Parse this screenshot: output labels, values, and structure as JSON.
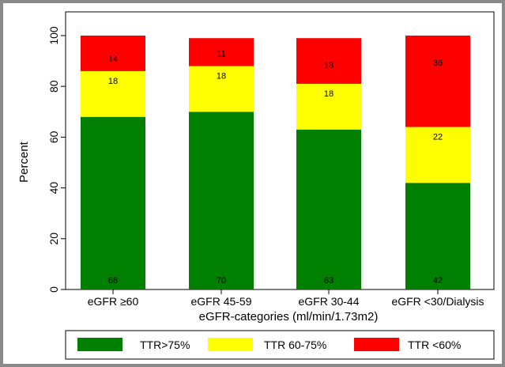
{
  "chart_data": {
    "type": "bar",
    "stacked": true,
    "categories": [
      "eGFR ≥60",
      "eGFR 45-59",
      "eGFR 30-44",
      "eGFR <30/Dialysis"
    ],
    "series": [
      {
        "name": "TTR>75%",
        "color": "#008000",
        "values": [
          68,
          70,
          63,
          42
        ]
      },
      {
        "name": "TTR 60-75%",
        "color": "#ffff00",
        "values": [
          18,
          18,
          18,
          22
        ]
      },
      {
        "name": "TTR <60%",
        "color": "#ff0000",
        "values": [
          14,
          11,
          18,
          36
        ]
      }
    ],
    "data_labels": [
      [
        "68",
        "18",
        "14"
      ],
      [
        "70",
        "18",
        "11"
      ],
      [
        "63",
        "18",
        "18"
      ],
      [
        "42",
        "22",
        "36"
      ]
    ],
    "xlabel": "eGFR-categories (ml/min/1.73m2)",
    "ylabel": "Percent",
    "ylim": [
      0,
      100
    ],
    "yticks": [
      "0",
      "20",
      "40",
      "60",
      "80",
      "100"
    ],
    "grid": false,
    "legend_position": "bottom"
  }
}
